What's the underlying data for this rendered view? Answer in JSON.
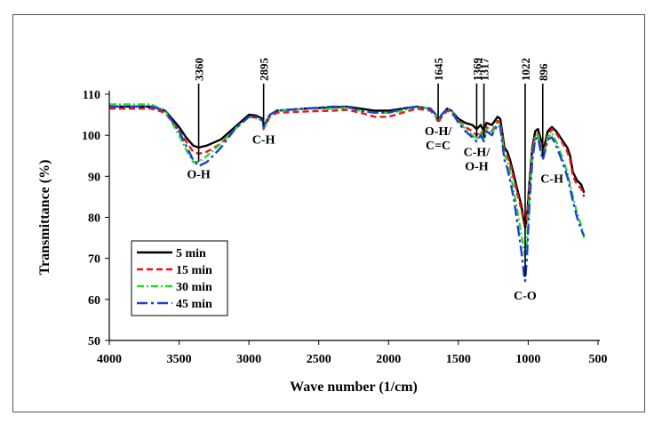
{
  "chart_data": {
    "type": "line",
    "title": "",
    "xlabel": "Wave number (1/cm)",
    "ylabel": "Transmittance (%)",
    "xlim": [
      4000,
      500
    ],
    "ylim": [
      50,
      110
    ],
    "xticks": [
      "4000",
      "3500",
      "3000",
      "2500",
      "2000",
      "1500",
      "1000",
      "500"
    ],
    "yticks": [
      "50",
      "60",
      "70",
      "80",
      "90",
      "100",
      "110"
    ],
    "peaks": [
      {
        "label": "3360",
        "x": 3360
      },
      {
        "label": "2895",
        "x": 2895
      },
      {
        "label": "1645",
        "x": 1645
      },
      {
        "label": "1369",
        "x": 1369
      },
      {
        "label": "1317",
        "x": 1317
      },
      {
        "label": "1022",
        "x": 1022
      },
      {
        "label": "896",
        "x": 896
      }
    ],
    "annotations": [
      {
        "lines": [
          "O-H"
        ],
        "x": 3360,
        "y": 89.5
      },
      {
        "lines": [
          "C-H"
        ],
        "x": 2895,
        "y": 98
      },
      {
        "lines": [
          "O-H/",
          "C=C"
        ],
        "x": 1645,
        "y": 100
      },
      {
        "lines": [
          "C-H/",
          "O-H"
        ],
        "x": 1369,
        "y": 95
      },
      {
        "lines": [
          "C-O"
        ],
        "x": 1022,
        "y": 60
      },
      {
        "lines": [
          "C-H"
        ],
        "x": 830,
        "y": 88.5
      }
    ],
    "series": [
      {
        "name": "5 min",
        "color": "#000000",
        "dash": "",
        "x": [
          4000,
          3850,
          3700,
          3600,
          3500,
          3450,
          3400,
          3360,
          3300,
          3200,
          3100,
          3000,
          2950,
          2900,
          2895,
          2880,
          2850,
          2800,
          2600,
          2400,
          2300,
          2200,
          2100,
          2000,
          1900,
          1800,
          1700,
          1660,
          1645,
          1620,
          1580,
          1550,
          1500,
          1450,
          1400,
          1369,
          1340,
          1317,
          1300,
          1260,
          1220,
          1200,
          1170,
          1150,
          1130,
          1100,
          1080,
          1050,
          1030,
          1022,
          1010,
          990,
          970,
          950,
          930,
          910,
          896,
          880,
          860,
          830,
          800,
          760,
          720,
          700,
          680,
          650,
          620,
          600
        ],
        "y": [
          107,
          107,
          107,
          106,
          102,
          99.5,
          97.5,
          97,
          97.5,
          99,
          102,
          105,
          104.8,
          104,
          102,
          103,
          105,
          106,
          106.5,
          106.8,
          107,
          106.5,
          106,
          106,
          106.5,
          107,
          106.5,
          105,
          103.5,
          105,
          106.5,
          106,
          104,
          103,
          102.5,
          101.5,
          102.5,
          101,
          103,
          102.5,
          104.5,
          104,
          97,
          96,
          94,
          90,
          87,
          83,
          79,
          77.5,
          80,
          89,
          97,
          101,
          101.5,
          99,
          96,
          98,
          101,
          102,
          101,
          99,
          97,
          95,
          91,
          89,
          88,
          86
        ]
      },
      {
        "name": "15 min",
        "color": "#e8161b",
        "dash": "7,4",
        "x": [
          4000,
          3850,
          3700,
          3600,
          3500,
          3450,
          3400,
          3360,
          3300,
          3200,
          3100,
          3000,
          2950,
          2900,
          2895,
          2880,
          2850,
          2800,
          2600,
          2400,
          2300,
          2200,
          2100,
          2000,
          1900,
          1800,
          1700,
          1660,
          1645,
          1620,
          1580,
          1550,
          1500,
          1450,
          1400,
          1369,
          1340,
          1317,
          1300,
          1260,
          1220,
          1200,
          1170,
          1150,
          1130,
          1100,
          1080,
          1050,
          1030,
          1022,
          1010,
          990,
          970,
          950,
          930,
          910,
          896,
          880,
          860,
          830,
          800,
          760,
          720,
          700,
          680,
          650,
          620,
          600
        ],
        "y": [
          106.5,
          106.5,
          106.5,
          105.5,
          101,
          98.5,
          96,
          95.5,
          96,
          98,
          101.5,
          104.5,
          104.3,
          103.5,
          101.5,
          102.5,
          104.5,
          105.5,
          105.8,
          106,
          106.2,
          105.5,
          104.5,
          104.5,
          105.5,
          106.5,
          106,
          104.5,
          103,
          104.5,
          106,
          105.5,
          103.5,
          102,
          101,
          100,
          101,
          100,
          102,
          101,
          103.5,
          103,
          96,
          95,
          93,
          89,
          86,
          82,
          78.5,
          78,
          80,
          88,
          96,
          100,
          100.5,
          98,
          95,
          97,
          100,
          101.5,
          100.5,
          98.5,
          96,
          94,
          90,
          88,
          87,
          85
        ]
      },
      {
        "name": "30 min",
        "color": "#22dd22",
        "dash": "8,3,2,3",
        "x": [
          4000,
          3850,
          3700,
          3600,
          3500,
          3450,
          3400,
          3360,
          3300,
          3200,
          3100,
          3000,
          2950,
          2900,
          2895,
          2880,
          2850,
          2800,
          2600,
          2400,
          2300,
          2200,
          2100,
          2000,
          1900,
          1800,
          1700,
          1660,
          1645,
          1620,
          1580,
          1550,
          1500,
          1450,
          1400,
          1369,
          1340,
          1317,
          1300,
          1260,
          1220,
          1200,
          1170,
          1150,
          1130,
          1100,
          1080,
          1050,
          1030,
          1022,
          1010,
          990,
          970,
          950,
          930,
          910,
          896,
          880,
          860,
          830,
          800,
          760,
          720,
          700,
          680,
          650,
          620,
          600
        ],
        "y": [
          107.5,
          107.5,
          107.5,
          106,
          100,
          96.5,
          93.5,
          93.5,
          95,
          98,
          101.5,
          104.5,
          104.5,
          103.5,
          101.5,
          102.5,
          105,
          106,
          106.5,
          106.5,
          106.8,
          106,
          105.5,
          105.5,
          106,
          107,
          106.5,
          105,
          103.5,
          105,
          106.5,
          106,
          103.5,
          101.5,
          100,
          99,
          100.5,
          99,
          101.5,
          100.5,
          103,
          102.5,
          95,
          94,
          91,
          86,
          82,
          76,
          72,
          70.5,
          74,
          86,
          95,
          100,
          100,
          97,
          94.5,
          96.5,
          99.5,
          100.5,
          98.5,
          95,
          91,
          88,
          85,
          81,
          78,
          75
        ]
      },
      {
        "name": "45 min",
        "color": "#1a3fd6",
        "dash": "12,4,3,4",
        "x": [
          4000,
          3850,
          3700,
          3600,
          3500,
          3450,
          3400,
          3360,
          3300,
          3200,
          3100,
          3000,
          2950,
          2900,
          2895,
          2880,
          2850,
          2800,
          2600,
          2400,
          2300,
          2200,
          2100,
          2000,
          1900,
          1800,
          1700,
          1660,
          1645,
          1620,
          1580,
          1550,
          1500,
          1450,
          1400,
          1369,
          1340,
          1317,
          1300,
          1260,
          1220,
          1200,
          1170,
          1150,
          1130,
          1100,
          1080,
          1050,
          1030,
          1022,
          1010,
          990,
          970,
          950,
          930,
          910,
          896,
          880,
          860,
          830,
          800,
          760,
          720,
          700,
          680,
          650,
          620,
          600
        ],
        "y": [
          107,
          107,
          107,
          106,
          101,
          97.5,
          94,
          92.5,
          93.5,
          97,
          101.5,
          104.5,
          104.5,
          103.5,
          102,
          103,
          105,
          106,
          106.5,
          107,
          107,
          106,
          105.5,
          105.5,
          106.5,
          107,
          106.5,
          105,
          103.5,
          105,
          106.5,
          106,
          103,
          101,
          99.5,
          98.5,
          100,
          98.5,
          101,
          100,
          102.5,
          102,
          94,
          92,
          89,
          84,
          79,
          72,
          66,
          64.5,
          70,
          84,
          94,
          99,
          99.5,
          96,
          94,
          96,
          99,
          99.5,
          97.5,
          94,
          90,
          87,
          84,
          80,
          77,
          75.5
        ]
      }
    ]
  }
}
